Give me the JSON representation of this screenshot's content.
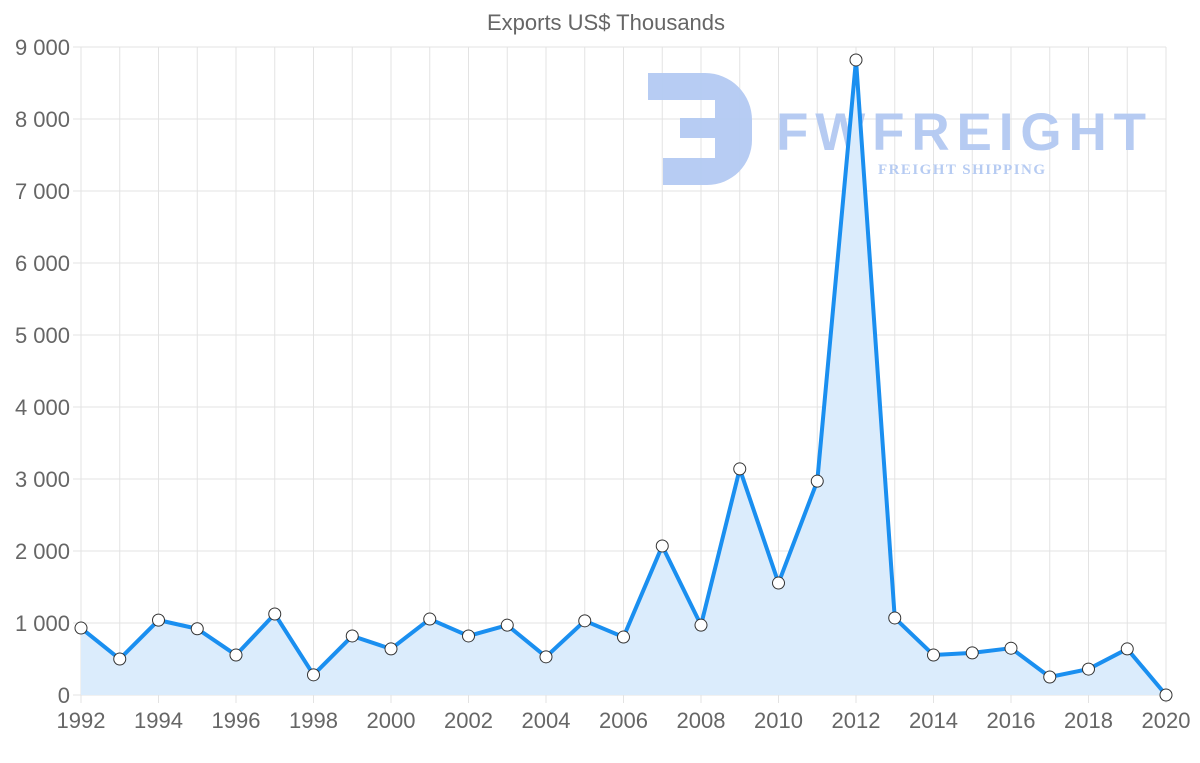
{
  "chart_data": {
    "type": "area",
    "title": "Exports US$ Thousands",
    "xlabel": "",
    "ylabel": "",
    "x": [
      1992,
      1993,
      1994,
      1995,
      1996,
      1997,
      1998,
      1999,
      2000,
      2001,
      2002,
      2003,
      2004,
      2005,
      2006,
      2007,
      2008,
      2009,
      2010,
      2011,
      2012,
      2013,
      2014,
      2015,
      2016,
      2017,
      2018,
      2019,
      2020
    ],
    "series": [
      {
        "name": "Exports US$ Thousands",
        "values": [
          930,
          500,
          1040,
          920,
          555,
          1125,
          280,
          820,
          640,
          1055,
          820,
          970,
          530,
          1030,
          805,
          2070,
          970,
          3140,
          1555,
          2970,
          8820,
          1070,
          555,
          585,
          650,
          250,
          360,
          640,
          0
        ]
      }
    ],
    "xlim": [
      1992,
      2020
    ],
    "ylim": [
      0,
      9000
    ],
    "x_ticks": [
      "1992",
      "1994",
      "1996",
      "1998",
      "2000",
      "2002",
      "2004",
      "2006",
      "2008",
      "2010",
      "2012",
      "2014",
      "2016",
      "2018",
      "2020"
    ],
    "y_ticks": [
      "0",
      "1 000",
      "2 000",
      "3 000",
      "4 000",
      "5 000",
      "6 000",
      "7 000",
      "8 000",
      "9 000"
    ],
    "grid": true,
    "legend": "none",
    "colors": {
      "line": "#1a8ff0",
      "fill": "#dbecfc",
      "grid": "#e3e3e3",
      "point_fill": "#ffffff",
      "point_stroke": "#333333"
    }
  },
  "watermark": {
    "brand": "FWFREIGHT",
    "tagline": "FREIGHT SHIPPING",
    "color": "#b3c9f2"
  }
}
